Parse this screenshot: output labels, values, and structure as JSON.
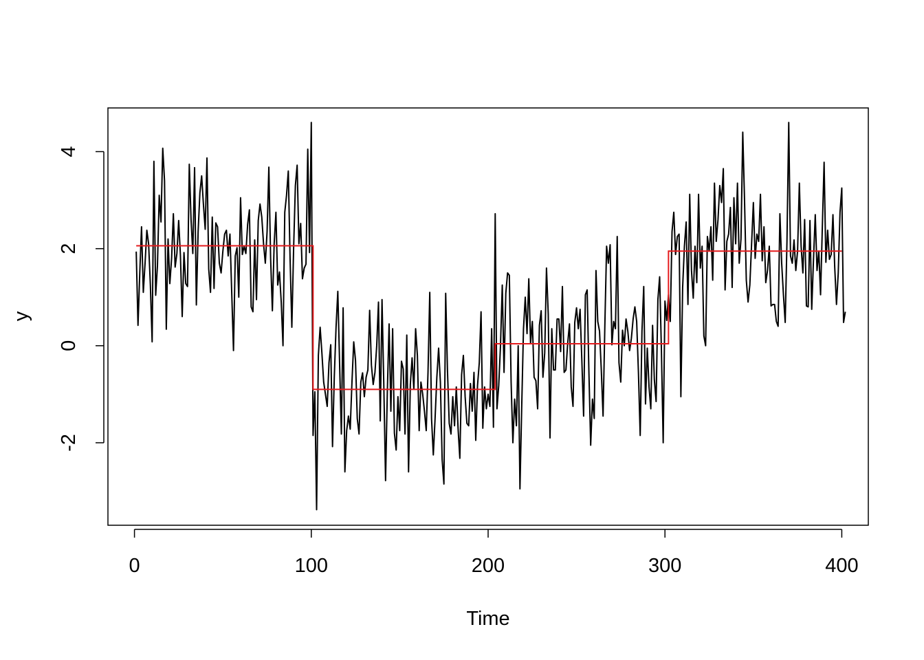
{
  "chart_data": {
    "type": "line",
    "title": "",
    "xlabel": "Time",
    "ylabel": "y",
    "xlim": [
      -15,
      415
    ],
    "ylim": [
      -3.7,
      4.9
    ],
    "x_ticks": [
      0,
      100,
      200,
      300,
      400
    ],
    "y_ticks": [
      -2,
      0,
      2,
      4
    ],
    "x_tick_labels": [
      "0",
      "100",
      "200",
      "300",
      "400"
    ],
    "y_tick_labels": [
      "-2",
      "0",
      "2",
      "4"
    ],
    "grid": false,
    "legend": "none",
    "series": [
      {
        "color": "#000000",
        "description": "observed series y, 400 points",
        "x_start": 1,
        "x_step": 1,
        "values": [
          1.94,
          0.42,
          1.5,
          2.45,
          1.1,
          1.7,
          2.38,
          2.1,
          1.25,
          0.08,
          3.8,
          1.04,
          1.65,
          3.1,
          2.55,
          4.07,
          3.4,
          0.34,
          2.2,
          1.28,
          1.8,
          2.72,
          1.62,
          1.9,
          2.58,
          1.85,
          0.6,
          1.92,
          1.28,
          1.22,
          3.74,
          2.6,
          1.9,
          3.67,
          0.84,
          2.35,
          3.15,
          3.5,
          2.91,
          2.4,
          3.87,
          1.58,
          1.1,
          2.65,
          1.18,
          2.53,
          2.45,
          1.7,
          1.5,
          1.95,
          2.3,
          2.38,
          1.85,
          2.3,
          1.1,
          -0.1,
          1.85,
          2.02,
          1.0,
          3.05,
          1.88,
          2.05,
          1.9,
          2.5,
          2.8,
          0.8,
          0.7,
          2.18,
          0.95,
          2.58,
          2.92,
          2.65,
          2.1,
          1.7,
          2.35,
          3.68,
          1.8,
          0.72,
          2.1,
          2.75,
          1.25,
          1.52,
          0.9,
          0.0,
          2.75,
          3.1,
          3.6,
          1.8,
          0.38,
          2.0,
          3.3,
          3.72,
          2.1,
          2.52,
          1.38,
          1.6,
          1.68,
          4.05,
          1.92,
          4.6,
          -1.85,
          -0.95,
          -3.38,
          -0.2,
          0.38,
          -0.15,
          -0.75,
          -1.0,
          -1.25,
          -0.35,
          0.02,
          -2.08,
          -0.65,
          0.38,
          1.12,
          -0.35,
          -1.82,
          0.78,
          -2.6,
          -1.75,
          -1.45,
          -1.72,
          -0.75,
          0.08,
          -0.3,
          -1.5,
          -1.82,
          -0.75,
          -0.56,
          -1.05,
          -0.65,
          -0.5,
          0.73,
          -0.4,
          -0.8,
          -0.55,
          0.0,
          0.9,
          -1.55,
          0.95,
          -0.8,
          -2.78,
          -0.95,
          0.45,
          -1.35,
          0.35,
          -1.8,
          -2.15,
          -1.05,
          -1.75,
          -0.32,
          -0.48,
          -1.82,
          0.22,
          -2.6,
          -0.8,
          -0.25,
          -0.9,
          0.35,
          -0.2,
          -1.75,
          -0.75,
          -1.0,
          -1.35,
          -1.75,
          -0.55,
          1.1,
          -1.5,
          -2.25,
          -1.5,
          -0.65,
          -0.05,
          -0.75,
          -2.35,
          -2.85,
          1.08,
          -0.5,
          -1.6,
          -1.82,
          -1.05,
          -1.65,
          -0.85,
          -1.7,
          -2.32,
          -0.6,
          -0.2,
          -1.05,
          -1.6,
          -1.65,
          -0.78,
          -1.35,
          -0.55,
          -1.95,
          -0.82,
          -0.35,
          0.7,
          -1.7,
          -0.85,
          -1.3,
          -1.0,
          -1.25,
          0.35,
          -1.68,
          2.72,
          -1.3,
          -0.82,
          0.0,
          1.25,
          -0.55,
          1.08,
          1.5,
          1.45,
          -0.75,
          -2.0,
          -1.1,
          -1.65,
          0.0,
          -2.95,
          -1.25,
          0.35,
          1.0,
          0.25,
          1.38,
          0.05,
          0.5,
          -0.65,
          -0.72,
          -1.3,
          0.42,
          0.72,
          -0.65,
          -0.15,
          1.6,
          0.65,
          -1.9,
          0.35,
          -0.5,
          -0.5,
          0.55,
          0.55,
          -0.12,
          1.22,
          -0.55,
          -0.5,
          0.05,
          0.45,
          -0.85,
          -1.25,
          0.48,
          0.78,
          0.35,
          0.75,
          -0.3,
          -1.45,
          1.05,
          1.15,
          -0.55,
          -2.05,
          -1.1,
          -1.5,
          1.55,
          0.5,
          0.3,
          -0.5,
          -1.45,
          0.4,
          2.05,
          1.7,
          2.08,
          0.02,
          0.5,
          0.35,
          2.25,
          -0.35,
          -0.75,
          0.32,
          0.0,
          0.55,
          0.3,
          -0.1,
          0.15,
          0.55,
          0.8,
          0.5,
          -0.55,
          -1.85,
          0.3,
          1.22,
          -1.2,
          -0.05,
          -0.85,
          -1.3,
          0.42,
          -0.7,
          -1.15,
          0.95,
          1.42,
          -0.1,
          -2.0,
          0.92,
          0.52,
          1.05,
          0.5,
          2.35,
          2.75,
          1.88,
          2.25,
          2.3,
          -1.05,
          1.2,
          2.05,
          2.55,
          0.85,
          3.12,
          1.55,
          0.98,
          2.05,
          1.3,
          3.12,
          1.6,
          2.05,
          0.2,
          0.0,
          2.25,
          1.95,
          2.45,
          1.35,
          3.35,
          2.15,
          2.6,
          3.3,
          2.95,
          3.65,
          1.15,
          2.15,
          2.3,
          2.85,
          1.2,
          3.05,
          2.1,
          3.35,
          1.7,
          2.2,
          4.4,
          3.0,
          1.35,
          0.9,
          1.25,
          2.1,
          2.95,
          1.8,
          2.3,
          2.15,
          3.12,
          1.75,
          2.45,
          1.3,
          1.55,
          2.05,
          0.82,
          0.85,
          0.85,
          0.5,
          0.4,
          2.72,
          1.7,
          1.05,
          0.48,
          2.15,
          4.6,
          1.85,
          1.7,
          2.18,
          1.55,
          1.95,
          3.35,
          2.05,
          1.5,
          2.6,
          0.82,
          0.8,
          2.58,
          0.75,
          1.78,
          2.7,
          1.55,
          1.95,
          1.05,
          2.45,
          3.78,
          1.72,
          2.38,
          1.78,
          1.88,
          2.7,
          1.62,
          0.85,
          1.5,
          2.75,
          3.25,
          0.48,
          0.7
        ]
      },
      {
        "color": "#e41a1c",
        "description": "piecewise-constant segment means (step function)",
        "segments": [
          {
            "x_start": 1,
            "x_end": 101,
            "value": 2.06
          },
          {
            "x_start": 101,
            "x_end": 204,
            "value": -0.9
          },
          {
            "x_start": 204,
            "x_end": 302,
            "value": 0.04
          },
          {
            "x_start": 302,
            "x_end": 400,
            "value": 1.95
          }
        ]
      }
    ]
  }
}
